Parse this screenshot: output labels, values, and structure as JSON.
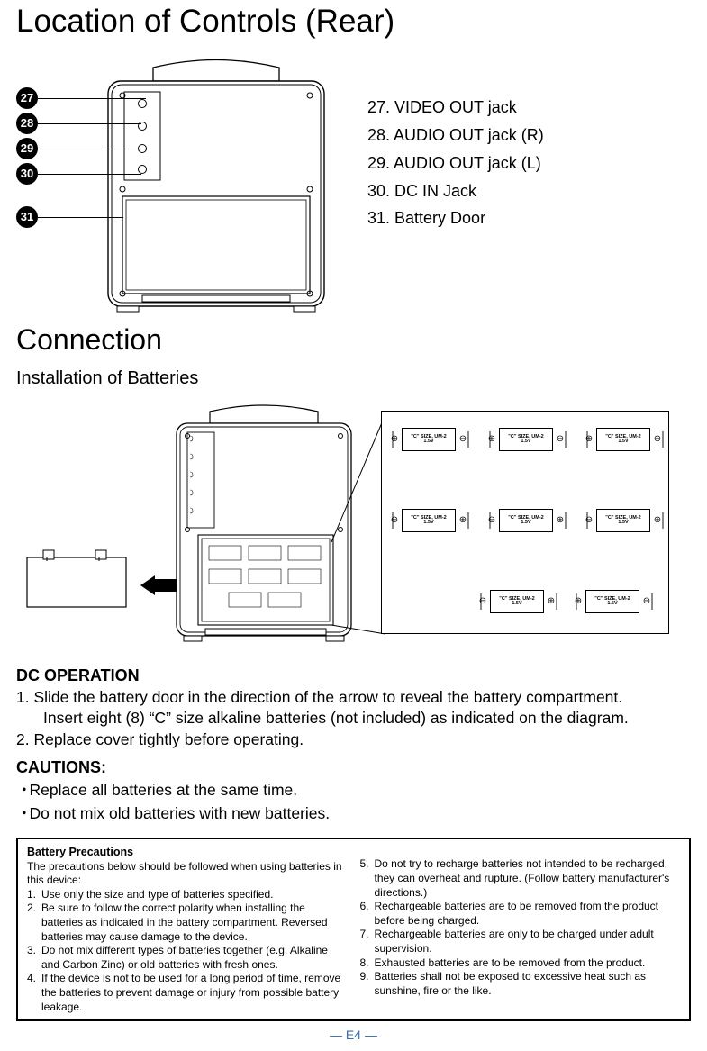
{
  "title_main": "Location of Controls (Rear)",
  "callouts": {
    "n27": "27",
    "n28": "28",
    "n29": "29",
    "n30": "30",
    "n31": "31"
  },
  "callout_list": {
    "i27": "27. VIDEO OUT jack",
    "i28": "28. AUDIO OUT jack (R)",
    "i29": "29. AUDIO OUT jack (L)",
    "i30": "30. DC IN Jack",
    "i31": "31. Battery Door"
  },
  "title_conn": "Connection",
  "subhead_install": "Installation of Batteries",
  "dc_head": "DC OPERATION",
  "step1a": "1. Slide the battery door in the direction of the arrow to reveal the battery compartment.",
  "step1b": "Insert eight (8) “C” size alkaline batteries (not included) as indicated on the diagram.",
  "step2": "2. Replace cover tightly before operating.",
  "caut_head": "CAUTIONS:",
  "caut1": "Replace all batteries at the same time.",
  "caut2": "Do not mix old batteries with new batteries.",
  "prec_head": "Battery Precautions",
  "prec_intro": "The precautions below should be followed when using batteries in this device:",
  "prec": {
    "p1n": "1.",
    "p1": "Use only the size and type of batteries specified.",
    "p2n": "2.",
    "p2": "Be sure to follow the correct polarity when installing the batteries as indicated in the battery compartment. Reversed batteries may cause damage to the device.",
    "p3n": "3.",
    "p3": "Do not mix different types of batteries together (e.g. Alkaline and Carbon Zinc) or old batteries with fresh ones.",
    "p4n": "4.",
    "p4": "If the device is not to be used for a long period of time, remove the batteries to prevent damage or injury from possible battery leakage.",
    "p5n": "5.",
    "p5": "Do not try to recharge batteries not intended to be recharged, they can overheat and rupture. (Follow battery manufacturer's directions.)",
    "p6n": "6.",
    "p6": "Rechargeable batteries are to be removed from the product before being charged.",
    "p7n": "7.",
    "p7": "Rechargeable batteries are only to be charged under adult supervision.",
    "p8n": "8.",
    "p8": "Exhausted batteries are to be removed from the product.",
    "p9n": "9.",
    "p9": "Batteries shall not be exposed to excessive heat such as sunshine, fire or the like."
  },
  "batt_text": "\"C\" SIZE, UM-2\n1.5V",
  "footer": "— E4 —",
  "colors": {
    "text": "#000000",
    "footer": "#3a6ea5",
    "bg": "#ffffff"
  }
}
